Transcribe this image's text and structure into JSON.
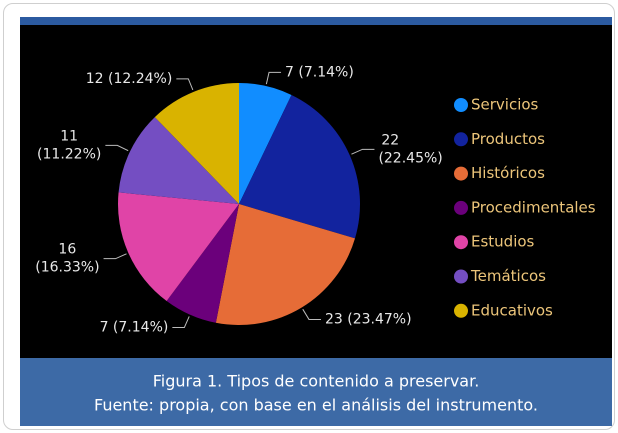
{
  "chart_data": {
    "type": "pie",
    "categories": [
      "Servicios",
      "Productos",
      "Históricos",
      "Procedimentales",
      "Estudios",
      "Temáticos",
      "Educativos"
    ],
    "values": [
      7,
      22,
      23,
      7,
      16,
      11,
      12
    ],
    "value_labels": [
      "7 (7.14%)",
      "22 (22.45%)",
      "23 (23.47%)",
      "7 (7.14%)",
      "16 (16.33%)",
      "11 (11.22%)",
      "12 (12.24%)"
    ],
    "colors": [
      "#118DFF",
      "#12239E",
      "#E66C37",
      "#6B007B",
      "#E044A7",
      "#744EC2",
      "#D9B300"
    ],
    "legend": "right"
  },
  "caption": {
    "lines": [
      "Figura 1. Tipos de contenido a preservar.",
      "Fuente: propia, con base en el análisis del instrumento."
    ]
  }
}
